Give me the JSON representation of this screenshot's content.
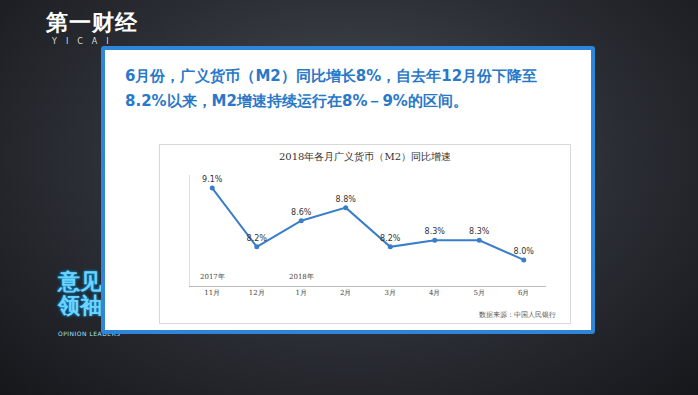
{
  "header": {
    "logo": "第一财经",
    "logo_sub": "YICAI",
    "show": "意见领袖",
    "show_sub": "OPINION LEADERS"
  },
  "headline": "6月份，广义货币（M2）同比增长8%，自去年12月份下降至8.2%以来，M2增速持续运行在8%－9%的区间。",
  "chart_data": {
    "type": "line",
    "title": "2018年各月广义货币（M2）同比增速",
    "categories": [
      "11月",
      "12月",
      "1月",
      "2月",
      "3月",
      "4月",
      "5月",
      "6月"
    ],
    "values": [
      9.1,
      8.2,
      8.6,
      8.8,
      8.2,
      8.3,
      8.3,
      8.0
    ],
    "value_labels": [
      "9.1%",
      "8.2%",
      "8.6%",
      "8.8%",
      "8.2%",
      "8.3%",
      "8.3%",
      "8.0%"
    ],
    "x_groups": [
      {
        "label": "2017年",
        "at": "11月"
      },
      {
        "label": "2018年",
        "at": "1月"
      }
    ],
    "color": "#3a7dc9",
    "marker": "circle",
    "line_style": "solid",
    "ylim": [
      7.6,
      9.3
    ],
    "yticks": [],
    "tick_labels": "x",
    "data_labels": true,
    "grid": false,
    "source": "数据来源：中国人民银行"
  }
}
